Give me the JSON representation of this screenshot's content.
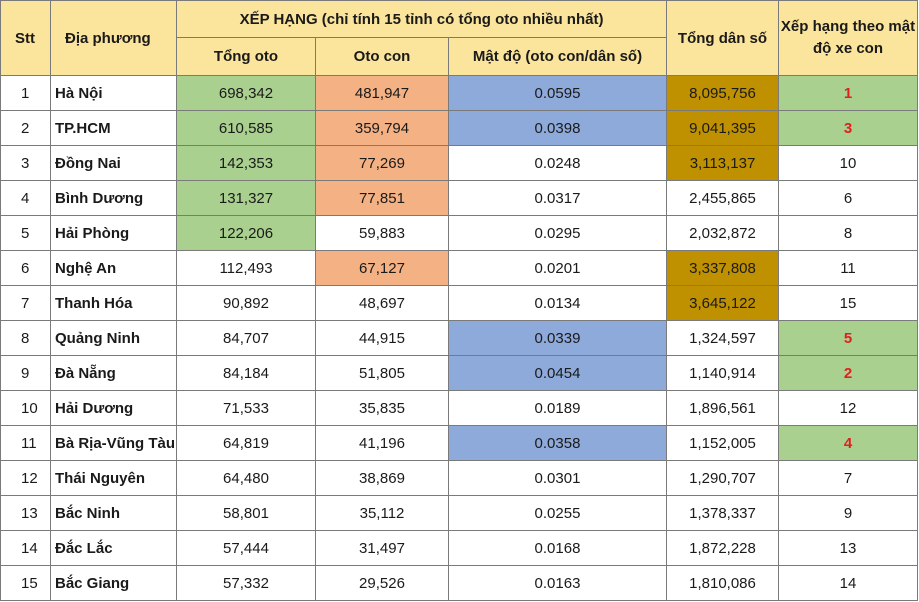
{
  "header": {
    "stt": "Stt",
    "location": "Địa phương",
    "ranking_group": "XẾP HẠNG (chỉ tính 15 tỉnh có tổng oto nhiều nhất)",
    "total_cars": "Tổng oto",
    "passenger_cars": "Oto con",
    "density": "Mật độ (oto con/dân số)",
    "population": "Tổng dân số",
    "density_rank": "Xếp hạng theo mật độ xe con"
  },
  "colors": {
    "green": "#a9d08e",
    "orange": "#f4b183",
    "blue": "#8eaadb",
    "dark_gold": "#bf9000",
    "header": "#fbe49b",
    "rank_red": "#e02020"
  },
  "rows": [
    {
      "stt": "1",
      "name": "Hà Nội",
      "total": "698,342",
      "cars": "481,947",
      "density": "0.0595",
      "population": "8,095,756",
      "rank": "1"
    },
    {
      "stt": "2",
      "name": "TP.HCM",
      "total": "610,585",
      "cars": "359,794",
      "density": "0.0398",
      "population": "9,041,395",
      "rank": "3"
    },
    {
      "stt": "3",
      "name": "Đồng Nai",
      "total": "142,353",
      "cars": "77,269",
      "density": "0.0248",
      "population": "3,113,137",
      "rank": "10"
    },
    {
      "stt": "4",
      "name": "Bình Dương",
      "total": "131,327",
      "cars": "77,851",
      "density": "0.0317",
      "population": "2,455,865",
      "rank": "6"
    },
    {
      "stt": "5",
      "name": "Hải Phòng",
      "total": "122,206",
      "cars": "59,883",
      "density": "0.0295",
      "population": "2,032,872",
      "rank": "8"
    },
    {
      "stt": "6",
      "name": "Nghệ An",
      "total": "112,493",
      "cars": "67,127",
      "density": "0.0201",
      "population": "3,337,808",
      "rank": "11"
    },
    {
      "stt": "7",
      "name": "Thanh Hóa",
      "total": "90,892",
      "cars": "48,697",
      "density": "0.0134",
      "population": "3,645,122",
      "rank": "15"
    },
    {
      "stt": "8",
      "name": "Quảng Ninh",
      "total": "84,707",
      "cars": "44,915",
      "density": "0.0339",
      "population": "1,324,597",
      "rank": "5"
    },
    {
      "stt": "9",
      "name": "Đà Nẵng",
      "total": "84,184",
      "cars": "51,805",
      "density": "0.0454",
      "population": "1,140,914",
      "rank": "2"
    },
    {
      "stt": "10",
      "name": "Hải Dương",
      "total": "71,533",
      "cars": "35,835",
      "density": "0.0189",
      "population": "1,896,561",
      "rank": "12"
    },
    {
      "stt": "11",
      "name": "Bà Rịa-Vũng Tàu",
      "total": "64,819",
      "cars": "41,196",
      "density": "0.0358",
      "population": "1,152,005",
      "rank": "4"
    },
    {
      "stt": "12",
      "name": "Thái Nguyên",
      "total": "64,480",
      "cars": "38,869",
      "density": "0.0301",
      "population": "1,290,707",
      "rank": "7"
    },
    {
      "stt": "13",
      "name": "Bắc Ninh",
      "total": "58,801",
      "cars": "35,112",
      "density": "0.0255",
      "population": "1,378,337",
      "rank": "9"
    },
    {
      "stt": "14",
      "name": "Đắc Lắc",
      "total": "57,444",
      "cars": "31,497",
      "density": "0.0168",
      "population": "1,872,228",
      "rank": "13"
    },
    {
      "stt": "15",
      "name": "Bắc Giang",
      "total": "57,332",
      "cars": "29,526",
      "density": "0.0163",
      "population": "1,810,086",
      "rank": "14"
    }
  ]
}
